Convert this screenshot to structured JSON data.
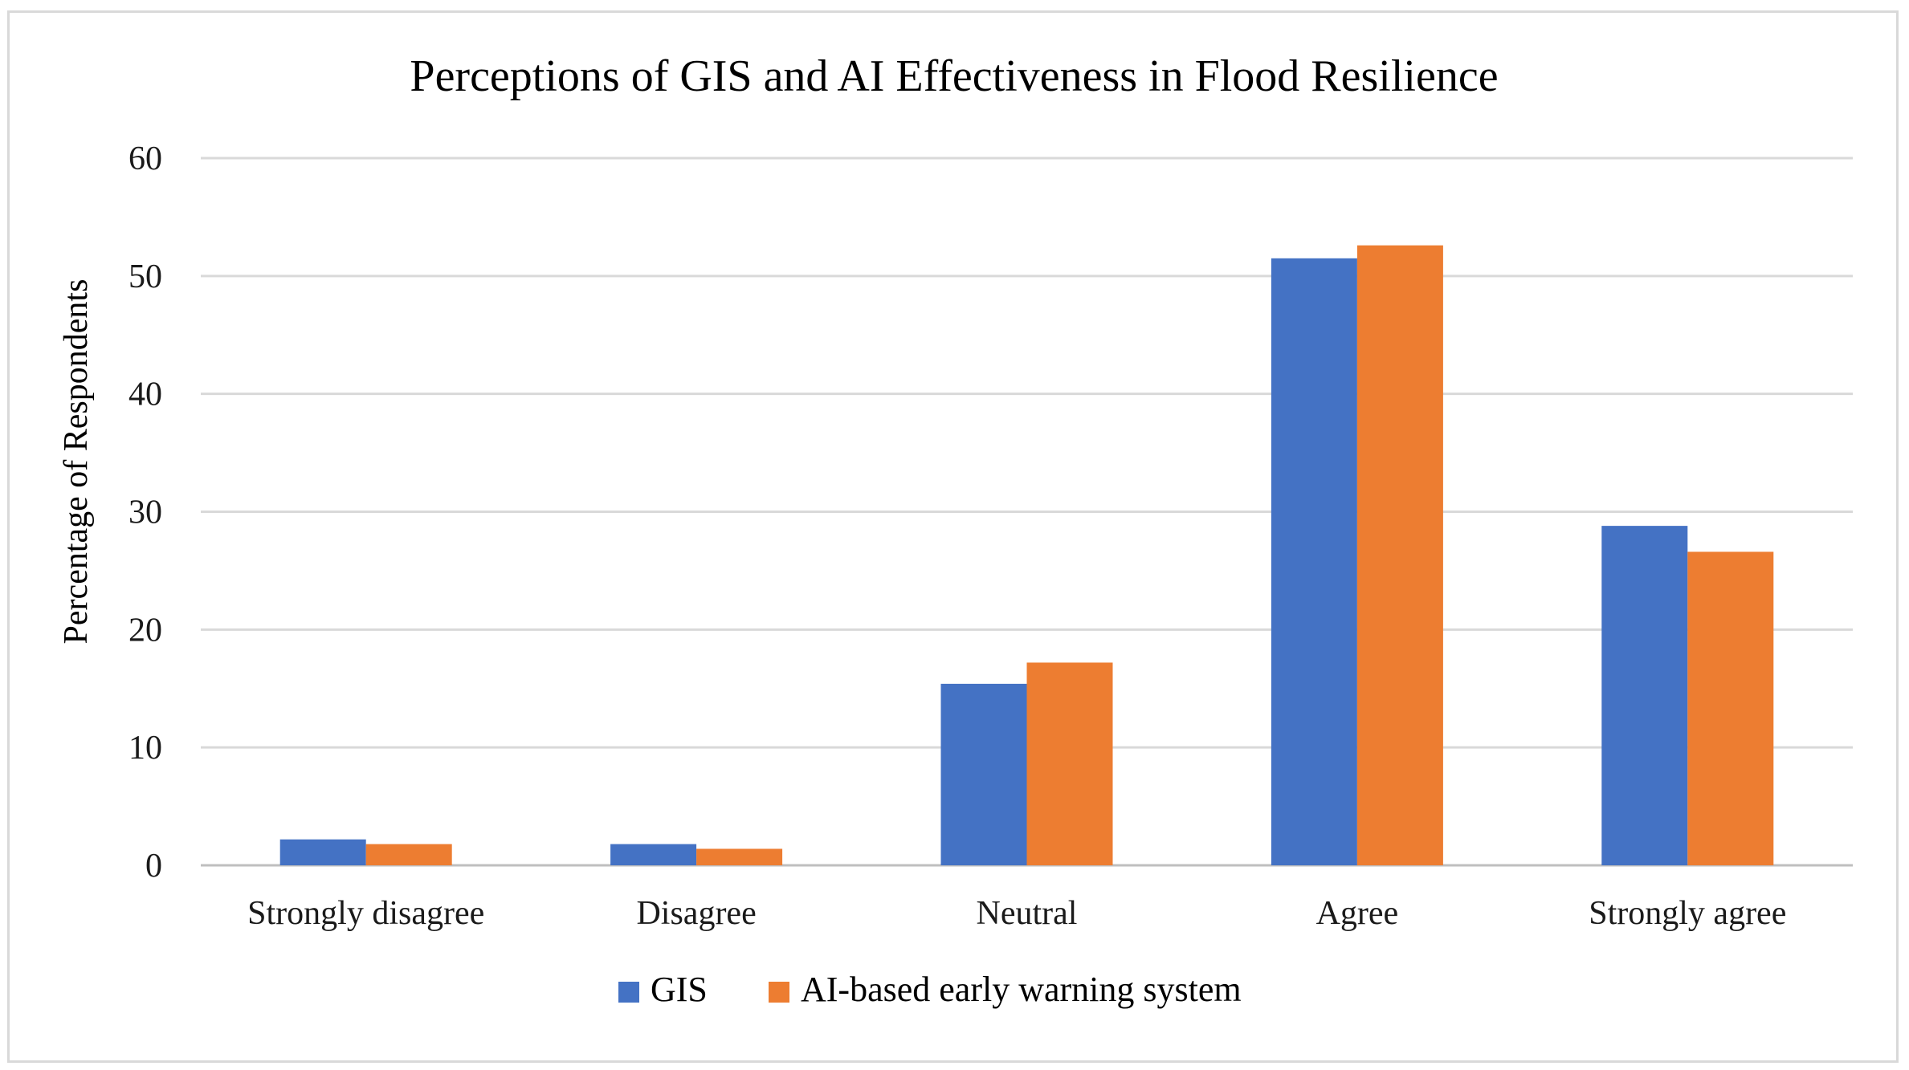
{
  "chart_data": {
    "type": "bar",
    "title": "Perceptions of GIS and AI Effectiveness in Flood Resilience",
    "xlabel": "",
    "ylabel": "Percentage of Respondents",
    "ylim": [
      0,
      60
    ],
    "yticks": [
      0,
      10,
      20,
      30,
      40,
      50,
      60
    ],
    "grid": true,
    "legend_position": "bottom",
    "categories": [
      "Strongly disagree",
      "Disagree",
      "Neutral",
      "Agree",
      "Strongly agree"
    ],
    "series": [
      {
        "name": "GIS",
        "color": "#4472C4",
        "values": [
          2.2,
          1.8,
          15.4,
          51.5,
          28.8
        ]
      },
      {
        "name": "AI-based early warning system",
        "color": "#ED7D31",
        "values": [
          1.8,
          1.4,
          17.2,
          52.6,
          26.6
        ]
      }
    ]
  }
}
